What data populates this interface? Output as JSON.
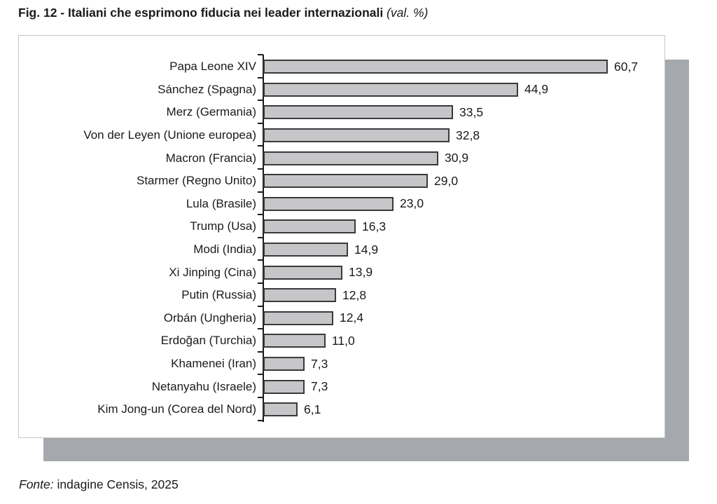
{
  "figure": {
    "title_prefix": "Fig. 12 - Italiani che esprimono fiducia nei leader internazionali",
    "title_suffix": "(val. %)",
    "source_label": "Fonte:",
    "source_text": "indagine Censis, 2025"
  },
  "chart_data": {
    "type": "bar",
    "orientation": "horizontal",
    "title": "Fig. 12 - Italiani che esprimono fiducia nei leader internazionali (val. %)",
    "xlabel": "",
    "ylabel": "",
    "xlim": [
      0,
      70
    ],
    "grid": false,
    "legend": false,
    "categories": [
      "Papa Leone XIV",
      "Sánchez (Spagna)",
      "Merz (Germania)",
      "Von der Leyen (Unione europea)",
      "Macron (Francia)",
      "Starmer (Regno Unito)",
      "Lula (Brasile)",
      "Trump (Usa)",
      "Modi (India)",
      "Xi Jinping (Cina)",
      "Putin (Russia)",
      "Orbán (Ungheria)",
      "Erdoğan (Turchia)",
      "Khamenei (Iran)",
      "Netanyahu (Israele)",
      "Kim Jong-un (Corea del Nord)"
    ],
    "values": [
      60.7,
      44.9,
      33.5,
      32.8,
      30.9,
      29.0,
      23.0,
      16.3,
      14.9,
      13.9,
      12.8,
      12.4,
      11.0,
      7.3,
      7.3,
      6.1
    ],
    "value_labels": [
      "60,7",
      "44,9",
      "33,5",
      "32,8",
      "30,9",
      "29,0",
      "23,0",
      "16,3",
      "14,9",
      "13,9",
      "12,8",
      "12,4",
      "11,0",
      "7,3",
      "7,3",
      "6,1"
    ],
    "colors": {
      "bar_fill": "#c6c6c9",
      "bar_border": "#3a3a3c",
      "axis": "#1a1a1a",
      "panel_border": "#c6c6c6",
      "panel_shadow": "#a5a8ac",
      "text": "#1a1a1a"
    }
  }
}
